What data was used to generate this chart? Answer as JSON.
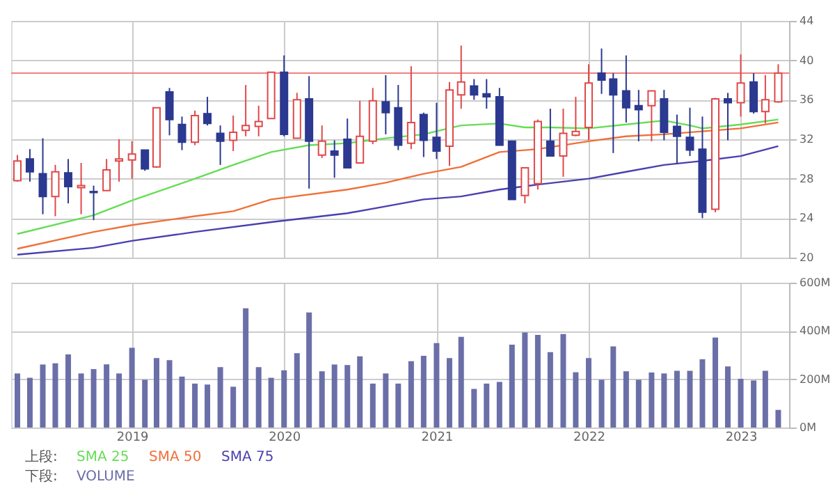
{
  "chart_data": [
    {
      "type": "candlestick",
      "x": [
        "2018-04",
        "2018-05",
        "2018-06",
        "2018-07",
        "2018-08",
        "2018-09",
        "2018-10",
        "2018-11",
        "2018-12",
        "2019-01",
        "2019-02",
        "2019-03",
        "2019-04",
        "2019-05",
        "2019-06",
        "2019-07",
        "2019-08",
        "2019-09",
        "2019-10",
        "2019-11",
        "2019-12",
        "2020-01",
        "2020-02",
        "2020-03",
        "2020-04",
        "2020-05",
        "2020-06",
        "2020-07",
        "2020-08",
        "2020-09",
        "2020-10",
        "2020-11",
        "2020-12",
        "2021-01",
        "2021-02",
        "2021-03",
        "2021-04",
        "2021-05",
        "2021-06",
        "2021-07",
        "2021-08",
        "2021-09",
        "2021-10",
        "2021-11",
        "2021-12",
        "2022-01",
        "2022-02",
        "2022-03",
        "2022-04",
        "2022-05",
        "2022-06",
        "2022-07",
        "2022-08",
        "2022-09",
        "2022-10",
        "2022-11",
        "2022-12",
        "2023-01",
        "2023-02",
        "2023-03",
        "2023-04"
      ],
      "ohlc": [
        [
          27.8,
          30.4,
          27.7,
          29.8
        ],
        [
          30.0,
          31.0,
          27.7,
          28.7
        ],
        [
          28.5,
          32.1,
          24.4,
          26.2
        ],
        [
          26.2,
          29.4,
          24.2,
          28.7
        ],
        [
          28.6,
          30.0,
          25.5,
          27.2
        ],
        [
          27.1,
          29.6,
          24.4,
          27.3
        ],
        [
          26.7,
          27.3,
          23.8,
          26.6
        ],
        [
          26.8,
          30.0,
          26.8,
          28.9
        ],
        [
          29.8,
          32.0,
          27.7,
          30.0
        ],
        [
          29.9,
          31.8,
          28.0,
          30.5
        ],
        [
          30.9,
          30.9,
          28.8,
          29.0
        ],
        [
          29.2,
          35.2,
          29.1,
          35.2
        ],
        [
          36.8,
          37.2,
          32.4,
          34.0
        ],
        [
          33.5,
          34.3,
          30.9,
          31.7
        ],
        [
          31.7,
          34.9,
          31.4,
          34.4
        ],
        [
          34.6,
          36.3,
          33.4,
          33.6
        ],
        [
          32.6,
          33.4,
          29.4,
          31.8
        ],
        [
          31.9,
          34.4,
          30.8,
          32.7
        ],
        [
          32.9,
          37.5,
          32.3,
          33.4
        ],
        [
          33.3,
          35.4,
          32.3,
          33.8
        ],
        [
          34.1,
          38.8,
          34.1,
          38.8
        ],
        [
          38.8,
          40.5,
          32.3,
          32.5
        ],
        [
          32.1,
          36.7,
          32.1,
          36.0
        ],
        [
          36.1,
          38.4,
          27.0,
          31.8
        ],
        [
          30.4,
          33.4,
          30.1,
          31.8
        ],
        [
          30.8,
          31.9,
          28.1,
          30.4
        ],
        [
          32.0,
          34.1,
          29.1,
          29.1
        ],
        [
          29.6,
          35.9,
          29.6,
          32.3
        ],
        [
          31.8,
          37.2,
          31.5,
          35.9
        ],
        [
          35.8,
          38.5,
          32.5,
          34.7
        ],
        [
          35.2,
          37.5,
          30.9,
          31.4
        ],
        [
          31.6,
          39.4,
          31.0,
          33.7
        ],
        [
          34.5,
          34.7,
          30.2,
          31.9
        ],
        [
          32.2,
          35.7,
          30.0,
          30.8
        ],
        [
          31.3,
          37.8,
          29.3,
          37.0
        ],
        [
          36.5,
          41.5,
          35.1,
          37.8
        ],
        [
          37.4,
          38.1,
          36.0,
          36.5
        ],
        [
          36.6,
          38.1,
          35.1,
          36.3
        ],
        [
          36.3,
          37.2,
          31.4,
          31.4
        ],
        [
          31.8,
          31.8,
          25.9,
          25.9
        ],
        [
          26.3,
          29.1,
          25.5,
          29.1
        ],
        [
          27.5,
          34.0,
          26.9,
          33.8
        ],
        [
          31.8,
          35.1,
          30.3,
          30.3
        ],
        [
          30.3,
          35.1,
          28.2,
          32.6
        ],
        [
          32.4,
          36.3,
          32.3,
          32.8
        ],
        [
          33.2,
          39.6,
          31.9,
          37.7
        ],
        [
          38.7,
          41.2,
          36.6,
          38.0
        ],
        [
          38.1,
          38.7,
          30.6,
          36.5
        ],
        [
          36.9,
          40.5,
          33.7,
          35.2
        ],
        [
          35.4,
          37.0,
          31.8,
          35.0
        ],
        [
          35.4,
          36.9,
          31.8,
          36.9
        ],
        [
          36.1,
          37.0,
          31.9,
          32.7
        ],
        [
          33.3,
          34.5,
          29.5,
          32.3
        ],
        [
          32.2,
          35.2,
          30.3,
          30.9
        ],
        [
          31.0,
          34.3,
          24.0,
          24.6
        ],
        [
          24.9,
          36.2,
          24.6,
          36.1
        ],
        [
          36.1,
          36.7,
          31.9,
          35.7
        ],
        [
          35.7,
          40.6,
          34.3,
          37.7
        ],
        [
          37.8,
          38.7,
          34.6,
          34.8
        ],
        [
          34.8,
          38.5,
          33.6,
          36.0
        ],
        [
          35.8,
          39.6,
          35.7,
          38.7
        ]
      ],
      "colors": [
        "#e04848",
        "#2b3990",
        "#2b3990",
        "#e04848",
        "#2b3990",
        "#e04848",
        "#2b3990",
        "#e04848",
        "#e04848",
        "#e04848",
        "#2b3990",
        "#e04848",
        "#2b3990",
        "#2b3990",
        "#e04848",
        "#2b3990",
        "#2b3990",
        "#e04848",
        "#e04848",
        "#e04848",
        "#e04848",
        "#2b3990",
        "#e04848",
        "#2b3990",
        "#e04848",
        "#2b3990",
        "#2b3990",
        "#e04848",
        "#e04848",
        "#2b3990",
        "#2b3990",
        "#e04848",
        "#2b3990",
        "#2b3990",
        "#e04848",
        "#e04848",
        "#2b3990",
        "#2b3990",
        "#2b3990",
        "#2b3990",
        "#e04848",
        "#e04848",
        "#2b3990",
        "#e04848",
        "#e04848",
        "#e04848",
        "#2b3990",
        "#2b3990",
        "#2b3990",
        "#2b3990",
        "#e04848",
        "#2b3990",
        "#2b3990",
        "#2b3990",
        "#2b3990",
        "#e04848",
        "#2b3990",
        "#e04848",
        "#2b3990",
        "#e04848",
        "#e04848"
      ],
      "series": [
        {
          "name": "SMA 25",
          "type": "line",
          "color": "#66dd55",
          "x": [
            "2018-04",
            "2018-10",
            "2019-01",
            "2019-06",
            "2019-09",
            "2019-12",
            "2020-03",
            "2020-06",
            "2020-09",
            "2020-12",
            "2021-03",
            "2021-06",
            "2021-08",
            "2021-10",
            "2022-01",
            "2022-04",
            "2022-07",
            "2022-09",
            "2022-10",
            "2023-01",
            "2023-04"
          ],
          "values": [
            22.4,
            24.3,
            25.8,
            28.0,
            29.4,
            30.7,
            31.4,
            31.6,
            32.1,
            32.5,
            33.4,
            33.6,
            33.2,
            33.2,
            33.1,
            33.5,
            33.9,
            33.4,
            33.1,
            33.5,
            34.0
          ]
        },
        {
          "name": "SMA 50",
          "type": "line",
          "color": "#f0703a",
          "x": [
            "2018-04",
            "2018-10",
            "2019-01",
            "2019-06",
            "2019-09",
            "2019-12",
            "2020-06",
            "2020-09",
            "2020-12",
            "2021-03",
            "2021-06",
            "2021-09",
            "2022-01",
            "2022-04",
            "2022-07",
            "2022-10",
            "2023-01",
            "2023-04"
          ],
          "values": [
            20.9,
            22.6,
            23.3,
            24.2,
            24.7,
            25.9,
            26.9,
            27.6,
            28.5,
            29.2,
            30.7,
            31.0,
            31.8,
            32.3,
            32.5,
            32.8,
            33.1,
            33.7
          ]
        },
        {
          "name": "SMA 75",
          "type": "line",
          "color": "#4a3fb0",
          "x": [
            "2018-04",
            "2018-10",
            "2019-01",
            "2019-06",
            "2019-12",
            "2020-06",
            "2020-09",
            "2020-12",
            "2021-03",
            "2021-06",
            "2021-09",
            "2022-01",
            "2022-04",
            "2022-07",
            "2022-10",
            "2023-01",
            "2023-04"
          ],
          "values": [
            20.3,
            21.0,
            21.7,
            22.6,
            23.6,
            24.5,
            25.2,
            25.9,
            26.2,
            26.9,
            27.4,
            28.0,
            28.7,
            29.4,
            29.8,
            30.3,
            31.3
          ]
        }
      ],
      "xlim": [
        "2018-03-17",
        "2023-04-27"
      ],
      "xticks": [
        "2019",
        "2020",
        "2021",
        "2022",
        "2023"
      ],
      "ylim": [
        20,
        44
      ],
      "yticks": [
        20,
        24,
        28,
        32,
        36,
        40,
        44
      ],
      "ref_lines": [
        {
          "axis": "y",
          "value": 38.7,
          "color": "#f08080"
        }
      ],
      "grid": true,
      "tick_labels": "y",
      "legend": "bottom",
      "marker": "none",
      "line_style": "solid",
      "annotations": [
        "上段:"
      ]
    },
    {
      "type": "bar",
      "x": [
        "2018-04",
        "2018-05",
        "2018-06",
        "2018-07",
        "2018-08",
        "2018-09",
        "2018-10",
        "2018-11",
        "2018-12",
        "2019-01",
        "2019-02",
        "2019-03",
        "2019-04",
        "2019-05",
        "2019-06",
        "2019-07",
        "2019-08",
        "2019-09",
        "2019-10",
        "2019-11",
        "2019-12",
        "2020-01",
        "2020-02",
        "2020-03",
        "2020-04",
        "2020-05",
        "2020-06",
        "2020-07",
        "2020-08",
        "2020-09",
        "2020-10",
        "2020-11",
        "2020-12",
        "2021-01",
        "2021-02",
        "2021-03",
        "2021-04",
        "2021-05",
        "2021-06",
        "2021-07",
        "2021-08",
        "2021-09",
        "2021-10",
        "2021-11",
        "2021-12",
        "2022-01",
        "2022-02",
        "2022-03",
        "2022-04",
        "2022-05",
        "2022-06",
        "2022-07",
        "2022-08",
        "2022-09",
        "2022-10",
        "2022-11",
        "2022-12",
        "2023-01",
        "2023-02",
        "2023-03",
        "2023-04"
      ],
      "series": [
        {
          "name": "VOLUME",
          "color": "#6b6fa8",
          "values": [
            224,
            206,
            261,
            266,
            303,
            224,
            242,
            262,
            224,
            330,
            198,
            288,
            279,
            211,
            182,
            178,
            250,
            169,
            494,
            250,
            206,
            237,
            308,
            477,
            233,
            261,
            259,
            295,
            182,
            224,
            182,
            275,
            297,
            350,
            288,
            376,
            160,
            182,
            189,
            343,
            394,
            384,
            312,
            387,
            229,
            288,
            198,
            336,
            233,
            198,
            228,
            224,
            235,
            235,
            283,
            373,
            253,
            202,
            195,
            235,
            73
          ]
        }
      ],
      "xlim": [
        "2018-03-17",
        "2023-04-27"
      ],
      "xticks": [
        "2019",
        "2020",
        "2021",
        "2022",
        "2023"
      ],
      "ylim": [
        0,
        600
      ],
      "yticks": [
        {
          "value": 0,
          "label": "0M"
        },
        {
          "value": 200,
          "label": "200M"
        },
        {
          "value": 400,
          "label": "400M"
        },
        {
          "value": 600,
          "label": "600M"
        }
      ],
      "grid": true,
      "legend": "bottom",
      "annotations": [
        "下段:"
      ]
    }
  ]
}
